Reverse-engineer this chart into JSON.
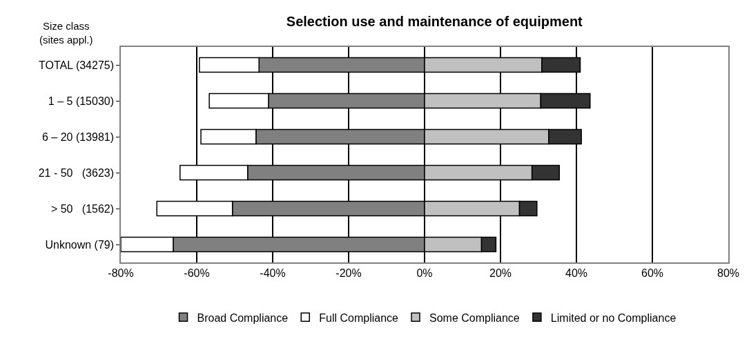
{
  "chart_data": {
    "type": "bar",
    "orientation": "horizontal",
    "stacked": true,
    "title": "Selection use and maintenance of equipment",
    "ylabel": "Size class\n(sites appl.)",
    "categories": [
      "TOTAL (34275)",
      "1 – 5 (15030)",
      "6 – 20 (13981)",
      "21 - 50   (3623)",
      "> 50   (1562)",
      "Unknown (79)"
    ],
    "series": [
      {
        "name": "Broad Compliance",
        "color": "#808080",
        "values": [
          -43.6,
          -41.1,
          -44.4,
          -46.6,
          -50.6,
          -66.2
        ]
      },
      {
        "name": "Full Compliance",
        "color": "#ffffff",
        "values": [
          -15.7,
          -15.6,
          -14.5,
          -17.8,
          -19.9,
          -13.8
        ]
      },
      {
        "name": "Some Compliance",
        "color": "#c0c0c0",
        "values": [
          30.9,
          30.6,
          32.7,
          28.3,
          25.0,
          15.0
        ]
      },
      {
        "name": "Limited or no Compliance",
        "color": "#333333",
        "values": [
          10.1,
          13.0,
          8.6,
          7.2,
          4.6,
          3.8
        ]
      }
    ],
    "xlim": [
      -80,
      80
    ],
    "xticks": [
      {
        "value": -80,
        "label": "-80%"
      },
      {
        "value": -60,
        "label": "-60%"
      },
      {
        "value": -40,
        "label": "-40%"
      },
      {
        "value": -20,
        "label": "-20%"
      },
      {
        "value": 0,
        "label": "0%"
      },
      {
        "value": 20,
        "label": "20%"
      },
      {
        "value": 40,
        "label": "40%"
      },
      {
        "value": 60,
        "label": "60%"
      },
      {
        "value": 80,
        "label": "80%"
      }
    ],
    "grid": "x",
    "legend": "bottom"
  }
}
